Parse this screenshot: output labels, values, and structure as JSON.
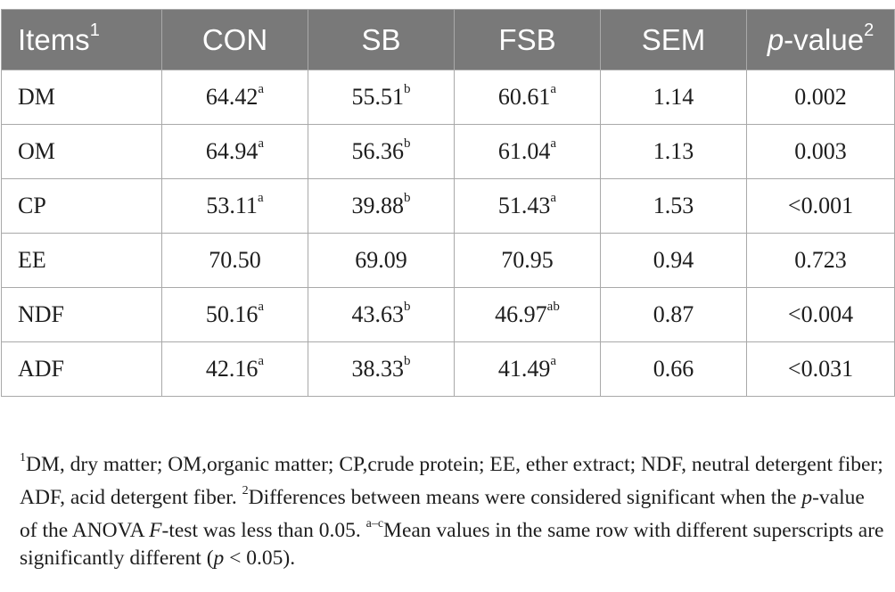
{
  "table": {
    "header": [
      {
        "text": "Items",
        "sup": "1",
        "italic": ""
      },
      {
        "text": "CON",
        "sup": "",
        "italic": ""
      },
      {
        "text": "SB",
        "sup": "",
        "italic": ""
      },
      {
        "text": "FSB",
        "sup": "",
        "italic": ""
      },
      {
        "text": "SEM",
        "sup": "",
        "italic": ""
      },
      {
        "text": "-value",
        "sup": "2",
        "italic": "p"
      }
    ],
    "rows": [
      {
        "item": "DM",
        "cells": [
          {
            "v": "64.42",
            "s": "a"
          },
          {
            "v": "55.51",
            "s": "b"
          },
          {
            "v": "60.61",
            "s": "a"
          },
          {
            "v": "1.14",
            "s": ""
          },
          {
            "v": "0.002",
            "s": ""
          }
        ]
      },
      {
        "item": "OM",
        "cells": [
          {
            "v": "64.94",
            "s": "a"
          },
          {
            "v": "56.36",
            "s": "b"
          },
          {
            "v": "61.04",
            "s": "a"
          },
          {
            "v": "1.13",
            "s": ""
          },
          {
            "v": "0.003",
            "s": ""
          }
        ]
      },
      {
        "item": "CP",
        "cells": [
          {
            "v": "53.11",
            "s": "a"
          },
          {
            "v": "39.88",
            "s": "b"
          },
          {
            "v": "51.43",
            "s": "a"
          },
          {
            "v": "1.53",
            "s": ""
          },
          {
            "v": "<0.001",
            "s": ""
          }
        ]
      },
      {
        "item": "EE",
        "cells": [
          {
            "v": "70.50",
            "s": ""
          },
          {
            "v": "69.09",
            "s": ""
          },
          {
            "v": "70.95",
            "s": ""
          },
          {
            "v": "0.94",
            "s": ""
          },
          {
            "v": "0.723",
            "s": ""
          }
        ]
      },
      {
        "item": "NDF",
        "cells": [
          {
            "v": "50.16",
            "s": "a"
          },
          {
            "v": "43.63",
            "s": "b"
          },
          {
            "v": "46.97",
            "s": "ab"
          },
          {
            "v": "0.87",
            "s": ""
          },
          {
            "v": "<0.004",
            "s": ""
          }
        ]
      },
      {
        "item": "ADF",
        "cells": [
          {
            "v": "42.16",
            "s": "a"
          },
          {
            "v": "38.33",
            "s": "b"
          },
          {
            "v": "41.49",
            "s": "a"
          },
          {
            "v": "0.66",
            "s": ""
          },
          {
            "v": "<0.031",
            "s": ""
          }
        ]
      }
    ]
  },
  "footnote": {
    "n1_mark": "1",
    "n1_text": "DM, dry matter; OM,organic matter; CP,crude protein; EE, ether extract; NDF, neutral detergent fiber; ADF, acid detergent fiber. ",
    "n2_mark": "2",
    "n2_text_a": "Differences between means were considered significant when the ",
    "n2_p": "p",
    "n2_text_b": "-value of the ANOVA ",
    "n2_f": "F",
    "n2_text_c": "-test was less than 0.05. ",
    "n3_mark": "a–c",
    "n3_text_a": "Mean values in the same row with different superscripts are significantly different (",
    "n3_p": "p",
    "n3_text_b": " < 0.05)."
  }
}
